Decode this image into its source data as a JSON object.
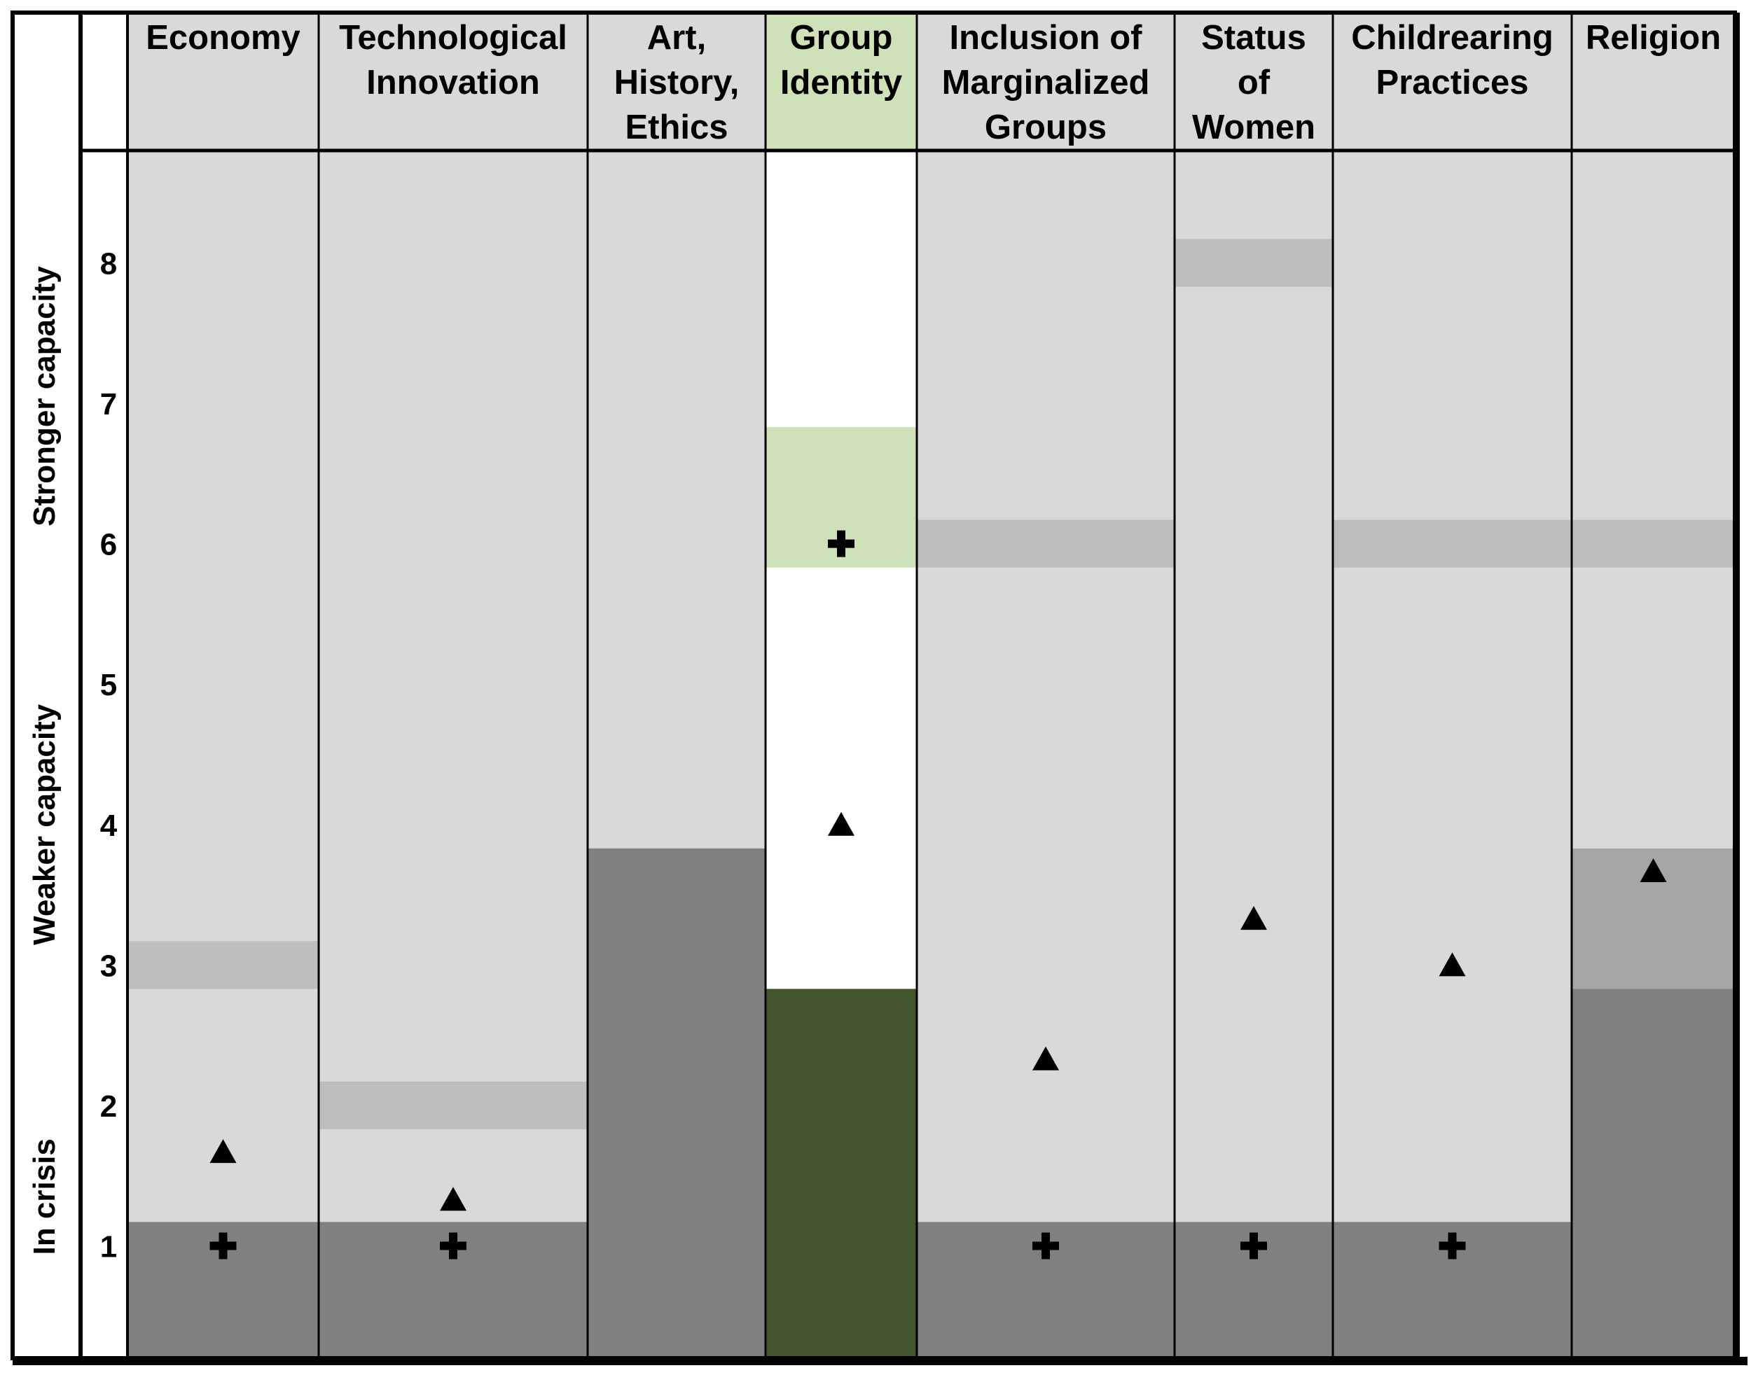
{
  "chart_data": {
    "type": "table",
    "colors": {
      "light_gray": "#d9d9d9",
      "band_gray": "#bebebe",
      "dark_gray": "#808080",
      "medium_gray": "#a6a6a6",
      "highlight_green": "#cfe1b9",
      "dark_green": "#43552b",
      "white": "#ffffff"
    },
    "side_labels": [
      "Stronger capacity",
      "Weaker capacity",
      "In crisis"
    ],
    "y_ticks": [
      "1",
      "2",
      "3",
      "4",
      "5",
      "6",
      "7",
      "8"
    ],
    "ylim": [
      0.2,
      8.8
    ],
    "columns": [
      {
        "header": [
          "Economy"
        ],
        "background": "light_gray",
        "header_fill": "light_gray",
        "regions": [
          {
            "from": 0.2,
            "to": 1.17,
            "fill": "dark_gray"
          },
          {
            "from": 2.83,
            "to": 3.17,
            "fill": "band_gray"
          }
        ],
        "plus": 1.0,
        "triangle": 1.67
      },
      {
        "header": [
          "Technological",
          "Innovation"
        ],
        "background": "light_gray",
        "header_fill": "light_gray",
        "regions": [
          {
            "from": 0.2,
            "to": 1.17,
            "fill": "dark_gray"
          },
          {
            "from": 1.83,
            "to": 2.17,
            "fill": "band_gray"
          }
        ],
        "plus": 1.0,
        "triangle": 1.33
      },
      {
        "header": [
          "Art,",
          "History,",
          "Ethics"
        ],
        "background": "light_gray",
        "header_fill": "light_gray",
        "regions": [
          {
            "from": 0.2,
            "to": 3.83,
            "fill": "dark_gray"
          }
        ],
        "plus": null,
        "triangle": null
      },
      {
        "header": [
          "Group",
          "Identity"
        ],
        "background": "white",
        "header_fill": "highlight_green",
        "regions": [
          {
            "from": 0.2,
            "to": 2.83,
            "fill": "dark_green"
          },
          {
            "from": 5.83,
            "to": 6.83,
            "fill": "highlight_green"
          }
        ],
        "plus": 6.0,
        "triangle": 4.0
      },
      {
        "header": [
          "Inclusion of",
          "Marginalized",
          "Groups"
        ],
        "background": "light_gray",
        "header_fill": "light_gray",
        "regions": [
          {
            "from": 0.2,
            "to": 1.17,
            "fill": "dark_gray"
          },
          {
            "from": 5.83,
            "to": 6.17,
            "fill": "band_gray"
          }
        ],
        "plus": 1.0,
        "triangle": 2.33
      },
      {
        "header": [
          "Status",
          "of",
          "Women"
        ],
        "background": "light_gray",
        "header_fill": "light_gray",
        "regions": [
          {
            "from": 0.2,
            "to": 1.17,
            "fill": "dark_gray"
          },
          {
            "from": 7.83,
            "to": 8.17,
            "fill": "band_gray"
          }
        ],
        "plus": 1.0,
        "triangle": 3.33
      },
      {
        "header": [
          "Childrearing",
          "Practices"
        ],
        "background": "light_gray",
        "header_fill": "light_gray",
        "regions": [
          {
            "from": 0.2,
            "to": 1.17,
            "fill": "dark_gray"
          },
          {
            "from": 5.83,
            "to": 6.17,
            "fill": "band_gray"
          }
        ],
        "plus": 1.0,
        "triangle": 3.0
      },
      {
        "header": [
          "Religion"
        ],
        "background": "light_gray",
        "header_fill": "light_gray",
        "regions": [
          {
            "from": 0.2,
            "to": 2.83,
            "fill": "dark_gray"
          },
          {
            "from": 2.83,
            "to": 3.83,
            "fill": "medium_gray"
          },
          {
            "from": 5.83,
            "to": 6.17,
            "fill": "band_gray"
          }
        ],
        "plus": null,
        "triangle": 3.67
      }
    ]
  }
}
